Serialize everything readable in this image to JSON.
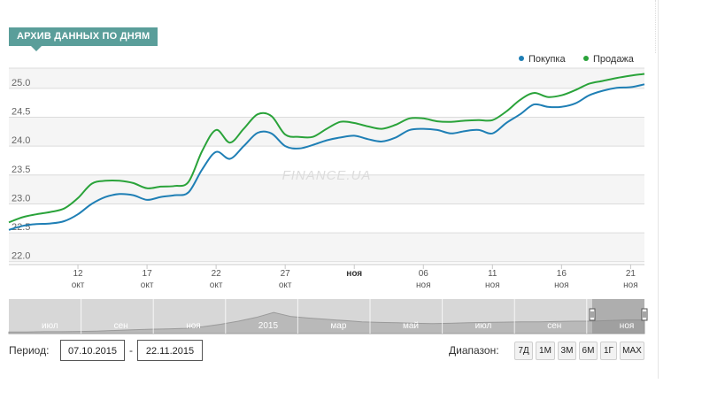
{
  "header": {
    "title": "АРХИВ ДАННЫХ ПО ДНЯМ"
  },
  "legend": [
    {
      "label": "Покупка",
      "color": "#1f7fb5"
    },
    {
      "label": "Продажа",
      "color": "#2aa33a"
    }
  ],
  "watermark": "FINANCE.UA",
  "chart_data": {
    "type": "line",
    "x_start": "2015-10-07",
    "x_end": "2015-11-22",
    "x_tick_labels": [
      {
        "date": "2015-10-12",
        "day": "12",
        "month": "окт"
      },
      {
        "date": "2015-10-17",
        "day": "17",
        "month": "окт"
      },
      {
        "date": "2015-10-22",
        "day": "22",
        "month": "окт"
      },
      {
        "date": "2015-10-27",
        "day": "27",
        "month": "окт"
      },
      {
        "date": "2015-11-01",
        "day": "ноя",
        "month": ""
      },
      {
        "date": "2015-11-06",
        "day": "06",
        "month": "ноя"
      },
      {
        "date": "2015-11-11",
        "day": "11",
        "month": "ноя"
      },
      {
        "date": "2015-11-16",
        "day": "16",
        "month": "ноя"
      },
      {
        "date": "2015-11-21",
        "day": "21",
        "month": "ноя"
      }
    ],
    "y_ticks": [
      "22.0",
      "22.5",
      "23.0",
      "23.5",
      "24.0",
      "24.5",
      "25.0"
    ],
    "ylim": [
      21.95,
      25.35
    ],
    "grid": true,
    "legend_position": "top-right",
    "series": [
      {
        "name": "Покупка",
        "color": "#1f7fb5",
        "points": [
          [
            "2015-10-07",
            22.55
          ],
          [
            "2015-10-08",
            22.62
          ],
          [
            "2015-10-09",
            22.65
          ],
          [
            "2015-10-10",
            22.66
          ],
          [
            "2015-10-11",
            22.7
          ],
          [
            "2015-10-12",
            22.82
          ],
          [
            "2015-10-13",
            23.0
          ],
          [
            "2015-10-14",
            23.12
          ],
          [
            "2015-10-15",
            23.17
          ],
          [
            "2015-10-16",
            23.15
          ],
          [
            "2015-10-17",
            23.07
          ],
          [
            "2015-10-18",
            23.12
          ],
          [
            "2015-10-19",
            23.15
          ],
          [
            "2015-10-20",
            23.2
          ],
          [
            "2015-10-21",
            23.6
          ],
          [
            "2015-10-22",
            23.9
          ],
          [
            "2015-10-23",
            23.78
          ],
          [
            "2015-10-24",
            24.0
          ],
          [
            "2015-10-25",
            24.23
          ],
          [
            "2015-10-26",
            24.22
          ],
          [
            "2015-10-27",
            24.0
          ],
          [
            "2015-10-28",
            23.96
          ],
          [
            "2015-10-29",
            24.02
          ],
          [
            "2015-10-30",
            24.1
          ],
          [
            "2015-10-31",
            24.15
          ],
          [
            "2015-11-01",
            24.18
          ],
          [
            "2015-11-02",
            24.12
          ],
          [
            "2015-11-03",
            24.08
          ],
          [
            "2015-11-04",
            24.15
          ],
          [
            "2015-11-05",
            24.28
          ],
          [
            "2015-11-06",
            24.3
          ],
          [
            "2015-11-07",
            24.28
          ],
          [
            "2015-11-08",
            24.22
          ],
          [
            "2015-11-09",
            24.26
          ],
          [
            "2015-11-10",
            24.28
          ],
          [
            "2015-11-11",
            24.22
          ],
          [
            "2015-11-12",
            24.4
          ],
          [
            "2015-11-13",
            24.55
          ],
          [
            "2015-11-14",
            24.72
          ],
          [
            "2015-11-15",
            24.68
          ],
          [
            "2015-11-16",
            24.68
          ],
          [
            "2015-11-17",
            24.74
          ],
          [
            "2015-11-18",
            24.88
          ],
          [
            "2015-11-19",
            24.96
          ],
          [
            "2015-11-20",
            25.01
          ],
          [
            "2015-11-21",
            25.02
          ],
          [
            "2015-11-22",
            25.07
          ]
        ]
      },
      {
        "name": "Продажа",
        "color": "#2aa33a",
        "points": [
          [
            "2015-10-07",
            22.68
          ],
          [
            "2015-10-08",
            22.77
          ],
          [
            "2015-10-09",
            22.82
          ],
          [
            "2015-10-10",
            22.86
          ],
          [
            "2015-10-11",
            22.92
          ],
          [
            "2015-10-12",
            23.1
          ],
          [
            "2015-10-13",
            23.35
          ],
          [
            "2015-10-14",
            23.4
          ],
          [
            "2015-10-15",
            23.4
          ],
          [
            "2015-10-16",
            23.36
          ],
          [
            "2015-10-17",
            23.27
          ],
          [
            "2015-10-18",
            23.3
          ],
          [
            "2015-10-19",
            23.31
          ],
          [
            "2015-10-20",
            23.38
          ],
          [
            "2015-10-21",
            23.92
          ],
          [
            "2015-10-22",
            24.28
          ],
          [
            "2015-10-23",
            24.06
          ],
          [
            "2015-10-24",
            24.3
          ],
          [
            "2015-10-25",
            24.55
          ],
          [
            "2015-10-26",
            24.52
          ],
          [
            "2015-10-27",
            24.2
          ],
          [
            "2015-10-28",
            24.16
          ],
          [
            "2015-10-29",
            24.16
          ],
          [
            "2015-10-30",
            24.3
          ],
          [
            "2015-10-31",
            24.42
          ],
          [
            "2015-11-01",
            24.4
          ],
          [
            "2015-11-02",
            24.34
          ],
          [
            "2015-11-03",
            24.3
          ],
          [
            "2015-11-04",
            24.37
          ],
          [
            "2015-11-05",
            24.48
          ],
          [
            "2015-11-06",
            24.48
          ],
          [
            "2015-11-07",
            24.43
          ],
          [
            "2015-11-08",
            24.42
          ],
          [
            "2015-11-09",
            24.44
          ],
          [
            "2015-11-10",
            24.45
          ],
          [
            "2015-11-11",
            24.45
          ],
          [
            "2015-11-12",
            24.6
          ],
          [
            "2015-11-13",
            24.8
          ],
          [
            "2015-11-14",
            24.92
          ],
          [
            "2015-11-15",
            24.85
          ],
          [
            "2015-11-16",
            24.88
          ],
          [
            "2015-11-17",
            24.97
          ],
          [
            "2015-11-18",
            25.08
          ],
          [
            "2015-11-19",
            25.13
          ],
          [
            "2015-11-20",
            25.18
          ],
          [
            "2015-11-21",
            25.22
          ],
          [
            "2015-11-22",
            25.25
          ]
        ]
      }
    ]
  },
  "navigator": {
    "labels": [
      "июл",
      "сен",
      "ноя",
      "2015",
      "мар",
      "май",
      "июл",
      "сен",
      "ноя"
    ],
    "profile": [
      0.05,
      0.05,
      0.06,
      0.06,
      0.07,
      0.08,
      0.1,
      0.12,
      0.14,
      0.15,
      0.17,
      0.22,
      0.3,
      0.4,
      0.52,
      0.68,
      0.55,
      0.5,
      0.46,
      0.42,
      0.38,
      0.36,
      0.35,
      0.33,
      0.32,
      0.33,
      0.35,
      0.36,
      0.37,
      0.38,
      0.38,
      0.39,
      0.4,
      0.4,
      0.42,
      0.44,
      0.44
    ]
  },
  "controls": {
    "period_label": "Период:",
    "date_from": "07.10.2015",
    "dash": "-",
    "date_to": "22.11.2015",
    "range_label": "Диапазон:",
    "range_buttons": [
      "7Д",
      "1М",
      "3М",
      "6М",
      "1Г",
      "MAX"
    ]
  }
}
